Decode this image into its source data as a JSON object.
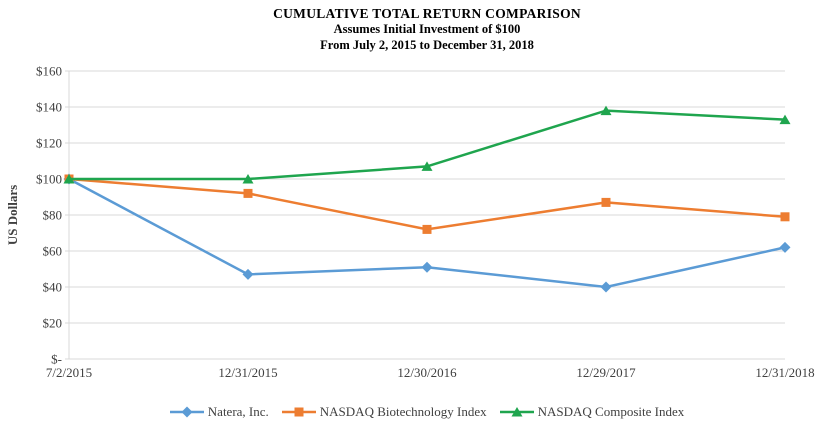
{
  "title": {
    "line1": "CUMULATIVE TOTAL RETURN COMPARISON",
    "line2": "Assumes Initial Investment of $100",
    "line3": "From July 2, 2015 to December 31, 2018"
  },
  "chart_data": {
    "type": "line",
    "title": "CUMULATIVE TOTAL RETURN COMPARISON",
    "subtitle1": "Assumes Initial Investment of $100",
    "subtitle2": "From July 2, 2015 to December 31, 2018",
    "xlabel": "",
    "ylabel": "US Dollars",
    "categories": [
      "7/2/2015",
      "12/31/2015",
      "12/30/2016",
      "12/29/2017",
      "12/31/2018"
    ],
    "series": [
      {
        "name": "Natera, Inc.",
        "marker": "diamond",
        "color": "#5B9BD5",
        "values": [
          100,
          47,
          51,
          40,
          62
        ]
      },
      {
        "name": "NASDAQ Biotechnology Index",
        "marker": "square",
        "color": "#ED7D31",
        "values": [
          100,
          92,
          72,
          87,
          79
        ]
      },
      {
        "name": "NASDAQ Composite Index",
        "marker": "triangle",
        "color": "#1FA54E",
        "values": [
          100,
          100,
          107,
          138,
          133
        ]
      }
    ],
    "ylim": [
      0,
      160
    ],
    "ytick_step": 20,
    "ytick_labels": [
      "$-",
      "$20",
      "$40",
      "$60",
      "$80",
      "$100",
      "$120",
      "$140",
      "$160"
    ],
    "grid": true,
    "legend_position": "bottom"
  },
  "colors": {
    "gridline": "#D9D9D9",
    "axis": "#D9D9D9",
    "tick_text": "#404040",
    "title_text": "#000000"
  }
}
